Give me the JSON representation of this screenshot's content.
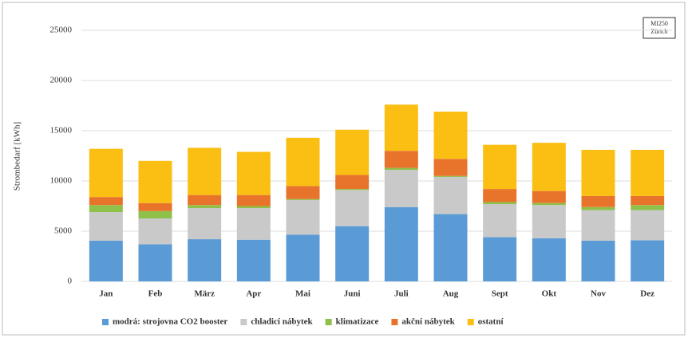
{
  "chart_data": {
    "type": "bar",
    "stacked": true,
    "y_label": "Strombedarf [kWh]",
    "annotation": [
      "MI250",
      "Zürich"
    ],
    "categories": [
      "Jan",
      "Feb",
      "März",
      "Apr",
      "Mai",
      "Juni",
      "Juli",
      "Aug",
      "Sept",
      "Okt",
      "Nov",
      "Dez"
    ],
    "series": [
      {
        "name": "modrá: strojovna CO2 booster",
        "color": "#5b9bd5",
        "values": [
          4050,
          3700,
          4200,
          4150,
          4650,
          5500,
          7400,
          6700,
          4400,
          4300,
          4050,
          4100
        ]
      },
      {
        "name": "chladicí nábytek",
        "color": "#c9c9c9",
        "values": [
          2850,
          2570,
          3100,
          3150,
          3450,
          3600,
          3700,
          3700,
          3300,
          3300,
          3050,
          3000
        ]
      },
      {
        "name": "klimatizace",
        "color": "#8fc04a",
        "values": [
          700,
          730,
          300,
          200,
          100,
          100,
          200,
          100,
          200,
          200,
          300,
          500
        ]
      },
      {
        "name": "akční nábytek",
        "color": "#e8742c",
        "values": [
          800,
          800,
          1000,
          1100,
          1300,
          1400,
          1700,
          1700,
          1300,
          1200,
          1100,
          900
        ]
      },
      {
        "name": "ostatní",
        "color": "#fbbf13",
        "values": [
          4800,
          4200,
          4700,
          4300,
          4800,
          4500,
          4600,
          4700,
          4400,
          4800,
          4600,
          4600
        ]
      }
    ],
    "ylim": [
      0,
      25000
    ],
    "yticks": [
      0,
      5000,
      10000,
      15000,
      20000,
      25000
    ],
    "grid": true,
    "legend": "bottom"
  }
}
